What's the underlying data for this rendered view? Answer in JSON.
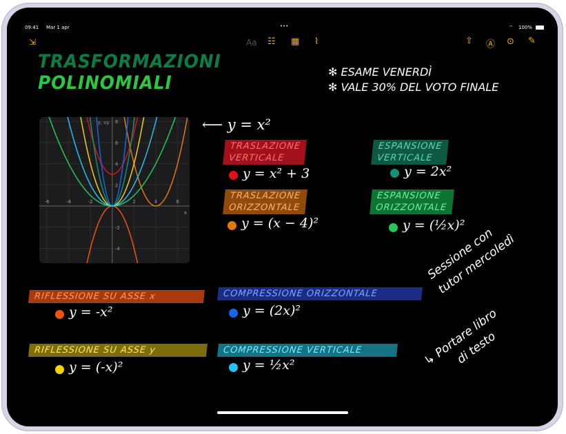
{
  "status_bar": {
    "time": "09:41",
    "date": "Mar 1 apr",
    "battery": "100%",
    "multitask": "•••"
  },
  "toolbar": {
    "left": [
      {
        "icon": "collapse-arrows-icon"
      }
    ],
    "center": [
      {
        "icon": "text-format-icon",
        "label": "Aa"
      },
      {
        "icon": "checklist-icon"
      },
      {
        "icon": "table-icon"
      },
      {
        "icon": "paperclip-icon"
      }
    ],
    "right": [
      {
        "icon": "share-icon"
      },
      {
        "icon": "markup-pen-icon"
      },
      {
        "icon": "more-icon"
      },
      {
        "icon": "compose-icon"
      }
    ],
    "accent": "#f2b705"
  },
  "note": {
    "title_line1": "TRASFORMAZIONI",
    "title_line2": "POLINOMIALI",
    "bullets": [
      "✻ ESAME VENERDÌ",
      "✻ VALE 30% DEL VOTO FINALE"
    ],
    "arrow_label": "⟵ y = x²",
    "sections": [
      {
        "label1": "TRASLAZIONE",
        "label2": "VERTICALE",
        "formula": "y = x² + 3",
        "color": "#e0101e",
        "bg": "#a3121c"
      },
      {
        "label1": "TRASLAZIONE",
        "label2": "ORIZZONTALE",
        "formula": "y = (x − 4)²",
        "color": "#e07a10",
        "bg": "#8f4a0c"
      },
      {
        "label1": "ESPANSIONE",
        "label2": "VERTICALE",
        "formula": "y = 2x²",
        "color": "#139177",
        "bg": "#0e5944"
      },
      {
        "label1": "ESPANSIONE",
        "label2": "ORIZZONTALE",
        "formula": "y = (½x)²",
        "color": "#22c95a",
        "bg": "#0e7434"
      },
      {
        "label1": "RIFLESSIONE SU ASSE x",
        "formula": "y = -x²",
        "color": "#f2540f",
        "bg": "#a83a10"
      },
      {
        "label1": "COMPRESSIONE ORIZZONTALE",
        "formula": "y = (2x)²",
        "color": "#1565e8",
        "bg": "#1a2c86"
      },
      {
        "label1": "RIFLESSIONE SU ASSE y",
        "formula": "y = (-x)²",
        "color": "#f5d20a",
        "bg": "#7d6e0c"
      },
      {
        "label1": "COMPRESSIONE VERTICALE",
        "formula": "y = ½x²",
        "color": "#22c3f0",
        "bg": "#137384"
      }
    ],
    "side_note1": [
      "Sessione con",
      "tutor mercoledì"
    ],
    "side_note2": [
      "↳ Portare libro",
      "di testo"
    ]
  },
  "chart_data": {
    "type": "line",
    "xlabel": "x",
    "ylabel": "y, uy",
    "xlim": [
      -6.7,
      7.1
    ],
    "ylim": [
      -5.4,
      8.4
    ],
    "x_ticks": [
      "-6",
      "-4",
      "-2",
      "2",
      "4",
      "6"
    ],
    "y_ticks": [
      "8",
      "6",
      "4",
      "2",
      "-2",
      "-4"
    ],
    "grid": true,
    "series": [
      {
        "expr": "x^2+3",
        "color": "#e0101e"
      },
      {
        "expr": "(x-4)^2",
        "color": "#e07a10"
      },
      {
        "expr": "2x^2",
        "color": "#139177"
      },
      {
        "expr": "(x/2)^2",
        "color": "#22c95a"
      },
      {
        "expr": "-x^2",
        "color": "#f2540f"
      },
      {
        "expr": "(2x)^2",
        "color": "#1565e8"
      },
      {
        "expr": "(-x)^2",
        "color": "#f5d20a"
      },
      {
        "expr": "x^2/2",
        "color": "#22c3f0"
      }
    ]
  }
}
